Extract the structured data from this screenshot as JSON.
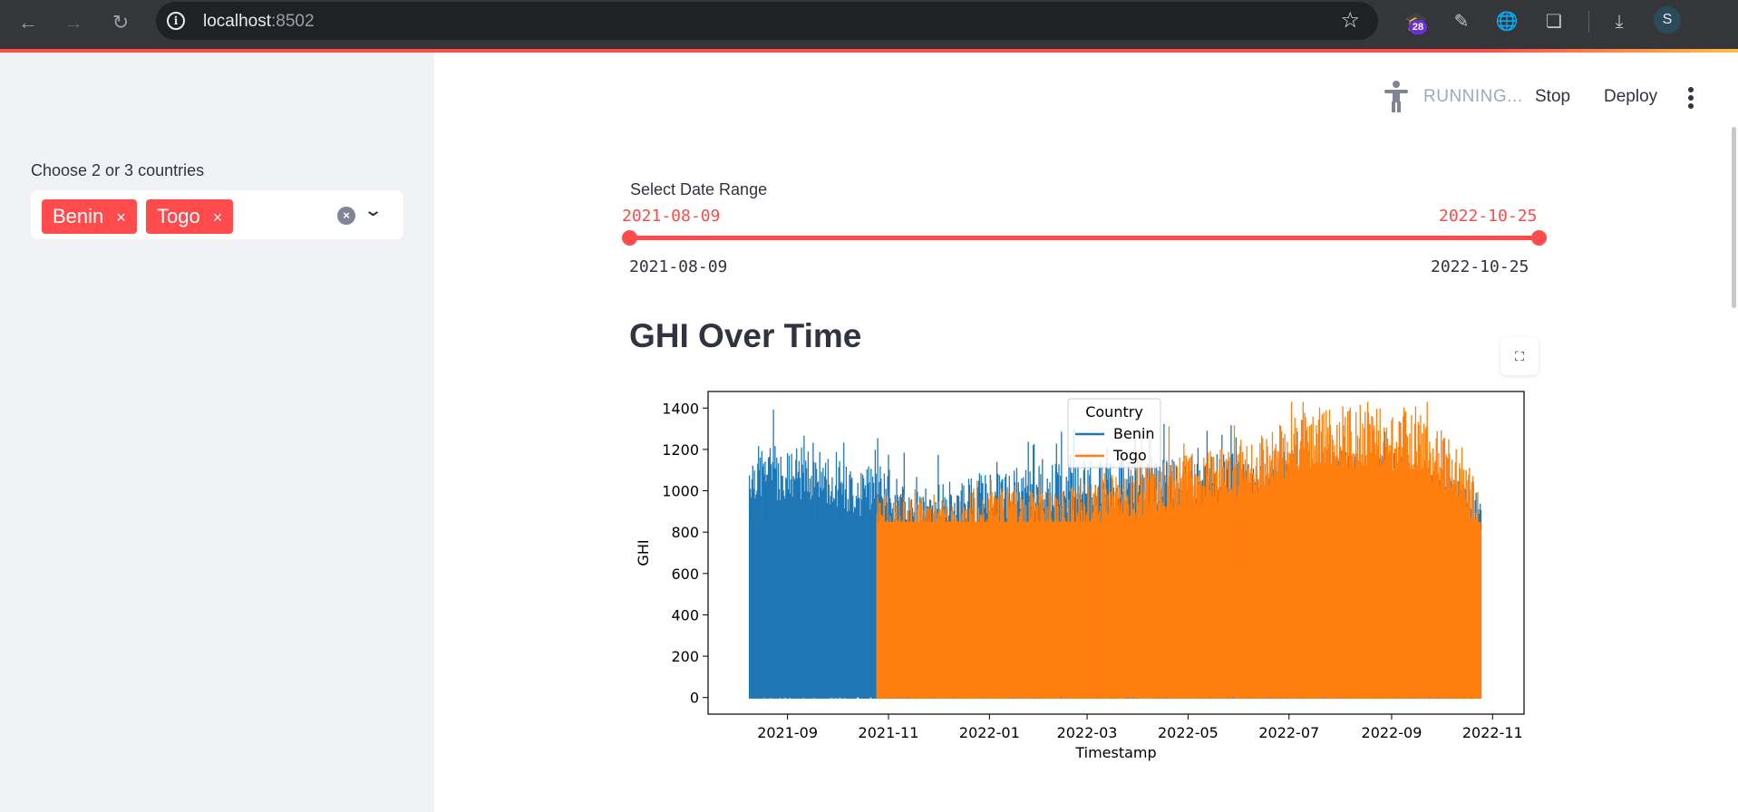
{
  "browser": {
    "url_host": "localhost",
    "url_port": ":8502",
    "extension_badge": "28",
    "avatar_letter": "S"
  },
  "sidebar": {
    "label": "Choose 2 or 3 countries",
    "selected": [
      "Benin",
      "Togo"
    ],
    "chip_remove": "×"
  },
  "toolbar": {
    "status": "RUNNING...",
    "stop_label": "Stop",
    "deploy_label": "Deploy"
  },
  "date_range": {
    "label": "Select Date Range",
    "selected_start": "2021-08-09",
    "selected_end": "2022-10-25",
    "min": "2021-08-09",
    "max": "2022-10-25"
  },
  "colors": {
    "accent": "#ff4b4b",
    "benin": "#1f77b4",
    "togo": "#ff7f0e",
    "sidebar_bg": "#f0f2f6"
  },
  "chart_title": "GHI Over Time",
  "chart_data": {
    "type": "line",
    "xlabel": "Timestamp",
    "ylabel": "GHI",
    "x_ticks": [
      "2021-09",
      "2021-11",
      "2022-01",
      "2022-03",
      "2022-05",
      "2022-07",
      "2022-09",
      "2022-11"
    ],
    "y_ticks": [
      0,
      200,
      400,
      600,
      800,
      1000,
      1200,
      1400
    ],
    "ylim": [
      -80,
      1480
    ],
    "xlim": [
      "2021-07-15",
      "2022-11-20"
    ],
    "legend": {
      "title": "Country",
      "placement": "top-center",
      "entries": [
        "Benin",
        "Togo"
      ]
    },
    "series": [
      {
        "name": "Benin",
        "x_range": [
          "2021-08-09",
          "2022-10-25"
        ],
        "daily_peak": [
          [
            "2021-08-09",
            1210
          ],
          [
            "2021-08-20",
            1230
          ],
          [
            "2021-09-01",
            1200
          ],
          [
            "2021-09-15",
            1220
          ],
          [
            "2021-10-01",
            1150
          ],
          [
            "2021-10-15",
            1100
          ],
          [
            "2021-10-25",
            1160
          ],
          [
            "2021-11-15",
            1000
          ],
          [
            "2022-01-01",
            1100
          ],
          [
            "2022-03-01",
            1150
          ],
          [
            "2022-05-01",
            1170
          ],
          [
            "2022-07-01",
            1200
          ],
          [
            "2022-09-01",
            1200
          ],
          [
            "2022-10-25",
            1000
          ]
        ]
      },
      {
        "name": "Togo",
        "x_range": [
          "2021-10-25",
          "2022-10-25"
        ],
        "daily_peak": [
          [
            "2021-10-25",
            1000
          ],
          [
            "2021-11-15",
            980
          ],
          [
            "2021-12-15",
            950
          ],
          [
            "2022-01-15",
            1030
          ],
          [
            "2022-02-15",
            1000
          ],
          [
            "2022-03-15",
            1080
          ],
          [
            "2022-04-15",
            1150
          ],
          [
            "2022-05-15",
            1200
          ],
          [
            "2022-06-15",
            1280
          ],
          [
            "2022-07-15",
            1400
          ],
          [
            "2022-08-15",
            1420
          ],
          [
            "2022-09-15",
            1400
          ],
          [
            "2022-10-15",
            1200
          ],
          [
            "2022-10-25",
            980
          ]
        ]
      }
    ]
  }
}
